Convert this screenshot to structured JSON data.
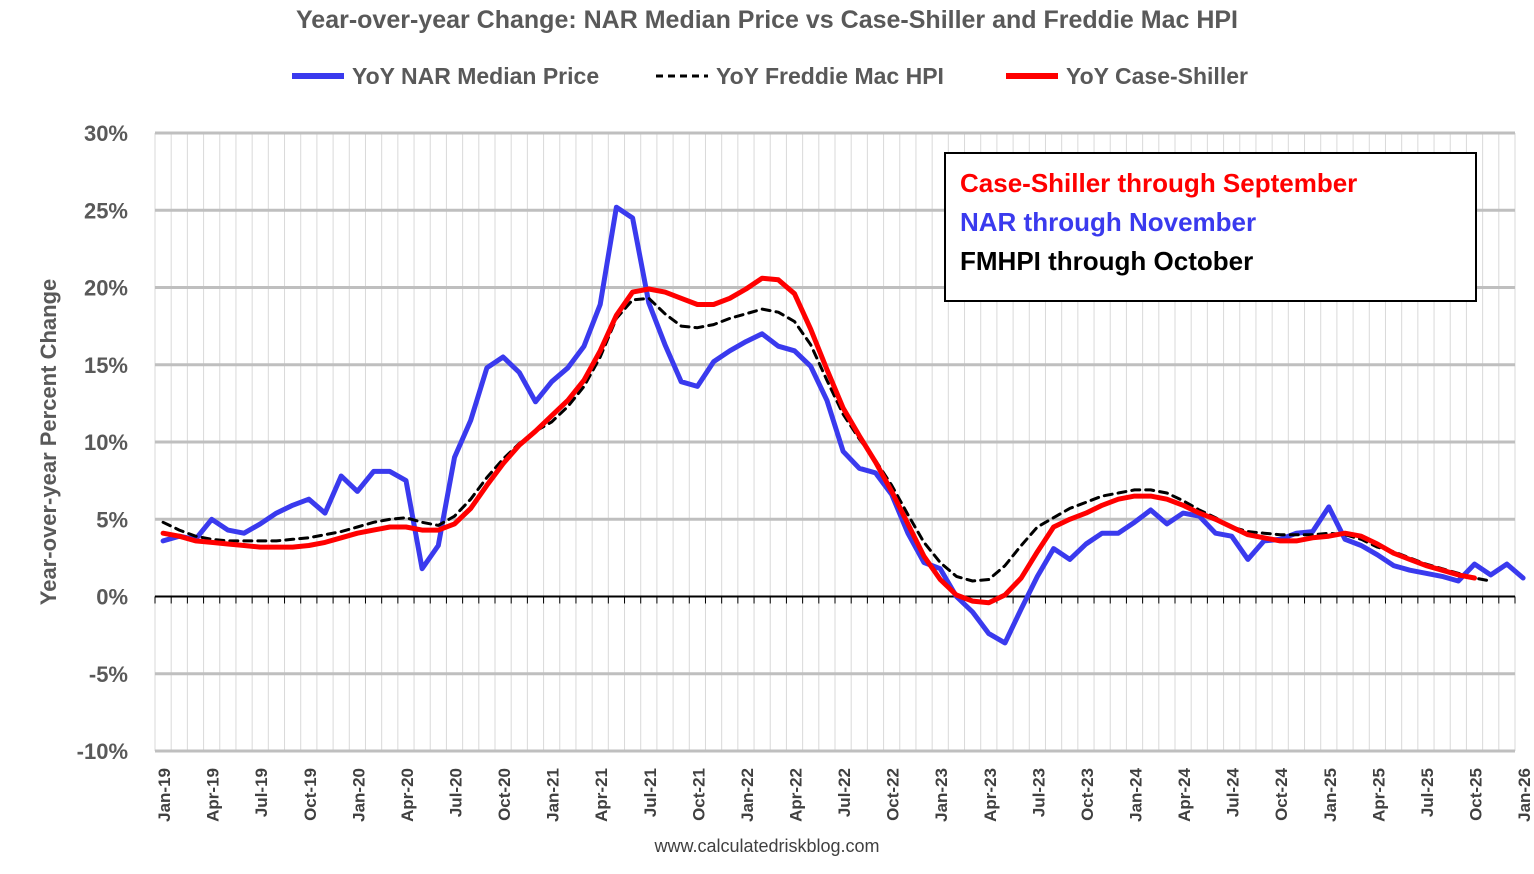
{
  "chart_data": {
    "type": "line",
    "title": "Year-over-year Change: NAR Median Price vs Case-Shiller and Freddie Mac HPI",
    "ylabel": "Year-over-year Percent Change",
    "xlabel": "",
    "ylim": [
      -10,
      30
    ],
    "yticks": [
      "-10%",
      "-5%",
      "0%",
      "5%",
      "10%",
      "15%",
      "20%",
      "25%",
      "30%"
    ],
    "xticks": [
      "Jan-19",
      "Apr-19",
      "Jul-19",
      "Oct-19",
      "Jan-20",
      "Apr-20",
      "Jul-20",
      "Oct-20",
      "Jan-21",
      "Apr-21",
      "Jul-21",
      "Oct-21",
      "Jan-22",
      "Apr-22",
      "Jul-22",
      "Oct-22",
      "Jan-23",
      "Apr-23",
      "Jul-23",
      "Oct-23",
      "Jan-24",
      "Apr-24",
      "Jul-24",
      "Oct-24",
      "Jan-25",
      "Apr-25",
      "Jul-25",
      "Oct-25",
      "Jan-26"
    ],
    "grid": true,
    "legend_position": "top",
    "x_start": "Jan-19",
    "series": [
      {
        "name": "YoY NAR Median Price",
        "color": "#3a3aee",
        "style": "solid",
        "values": [
          3.6,
          3.9,
          3.7,
          5.0,
          4.3,
          4.1,
          4.7,
          5.4,
          5.9,
          6.3,
          5.4,
          7.8,
          6.8,
          8.1,
          8.1,
          7.5,
          1.8,
          3.3,
          9.0,
          11.4,
          14.8,
          15.5,
          14.5,
          12.6,
          13.9,
          14.8,
          16.2,
          18.9,
          25.2,
          24.5,
          19.0,
          16.3,
          13.9,
          13.6,
          15.2,
          15.9,
          16.5,
          17.0,
          16.2,
          15.9,
          14.9,
          12.7,
          9.4,
          8.3,
          8.0,
          6.6,
          4.1,
          2.2,
          1.8,
          0.0,
          -1.0,
          -2.4,
          -3.0,
          -0.8,
          1.3,
          3.1,
          2.4,
          3.4,
          4.1,
          4.1,
          4.8,
          5.6,
          4.7,
          5.4,
          5.2,
          4.1,
          3.9,
          2.4,
          3.6,
          3.7,
          4.1,
          4.2,
          5.8,
          3.7,
          3.3,
          2.7,
          2.0,
          1.7,
          1.5,
          1.3,
          1.0,
          2.1,
          1.4,
          2.1,
          1.2
        ]
      },
      {
        "name": "YoY Freddie Mac HPI",
        "color": "#000000",
        "style": "dashed",
        "values": [
          4.8,
          4.3,
          3.9,
          3.7,
          3.6,
          3.6,
          3.6,
          3.6,
          3.7,
          3.8,
          4.0,
          4.2,
          4.5,
          4.8,
          5.0,
          5.1,
          4.8,
          4.6,
          5.2,
          6.3,
          7.7,
          8.9,
          9.9,
          10.7,
          11.3,
          12.3,
          13.6,
          15.5,
          18.0,
          19.2,
          19.3,
          18.3,
          17.5,
          17.4,
          17.6,
          18.0,
          18.3,
          18.6,
          18.4,
          17.8,
          16.3,
          14.0,
          11.8,
          10.2,
          8.8,
          7.2,
          5.3,
          3.5,
          2.2,
          1.3,
          1.0,
          1.1,
          2.0,
          3.3,
          4.5,
          5.1,
          5.7,
          6.1,
          6.5,
          6.7,
          6.9,
          6.9,
          6.7,
          6.2,
          5.6,
          5.1,
          4.5,
          4.2,
          4.1,
          4.0,
          4.0,
          4.0,
          4.1,
          4.0,
          3.7,
          3.2,
          2.9,
          2.5,
          2.1,
          1.8,
          1.5,
          1.2,
          1.0
        ]
      },
      {
        "name": "YoY Case-Shiller",
        "color": "#ff0000",
        "style": "solid",
        "values": [
          4.1,
          3.9,
          3.6,
          3.5,
          3.4,
          3.3,
          3.2,
          3.2,
          3.2,
          3.3,
          3.5,
          3.8,
          4.1,
          4.3,
          4.5,
          4.5,
          4.3,
          4.3,
          4.7,
          5.7,
          7.2,
          8.6,
          9.8,
          10.7,
          11.7,
          12.7,
          14.0,
          15.9,
          18.2,
          19.7,
          19.9,
          19.7,
          19.3,
          18.9,
          18.9,
          19.3,
          19.9,
          20.6,
          20.5,
          19.6,
          17.3,
          14.7,
          12.2,
          10.4,
          8.7,
          6.8,
          4.7,
          2.6,
          1.1,
          0.1,
          -0.3,
          -0.4,
          0.1,
          1.2,
          2.9,
          4.5,
          5.0,
          5.4,
          5.9,
          6.3,
          6.5,
          6.5,
          6.3,
          5.9,
          5.4,
          5.0,
          4.5,
          4.0,
          3.8,
          3.6,
          3.6,
          3.8,
          3.9,
          4.1,
          3.9,
          3.4,
          2.8,
          2.4,
          2.0,
          1.7,
          1.4,
          1.2
        ]
      }
    ],
    "annotations": [
      {
        "text": "Case-Shiller through September",
        "color": "#ff0000"
      },
      {
        "text": "NAR through November",
        "color": "#3a3aee"
      },
      {
        "text": "FMHPI through October",
        "color": "#000000"
      }
    ],
    "source": "www.calculatedriskblog.com"
  }
}
